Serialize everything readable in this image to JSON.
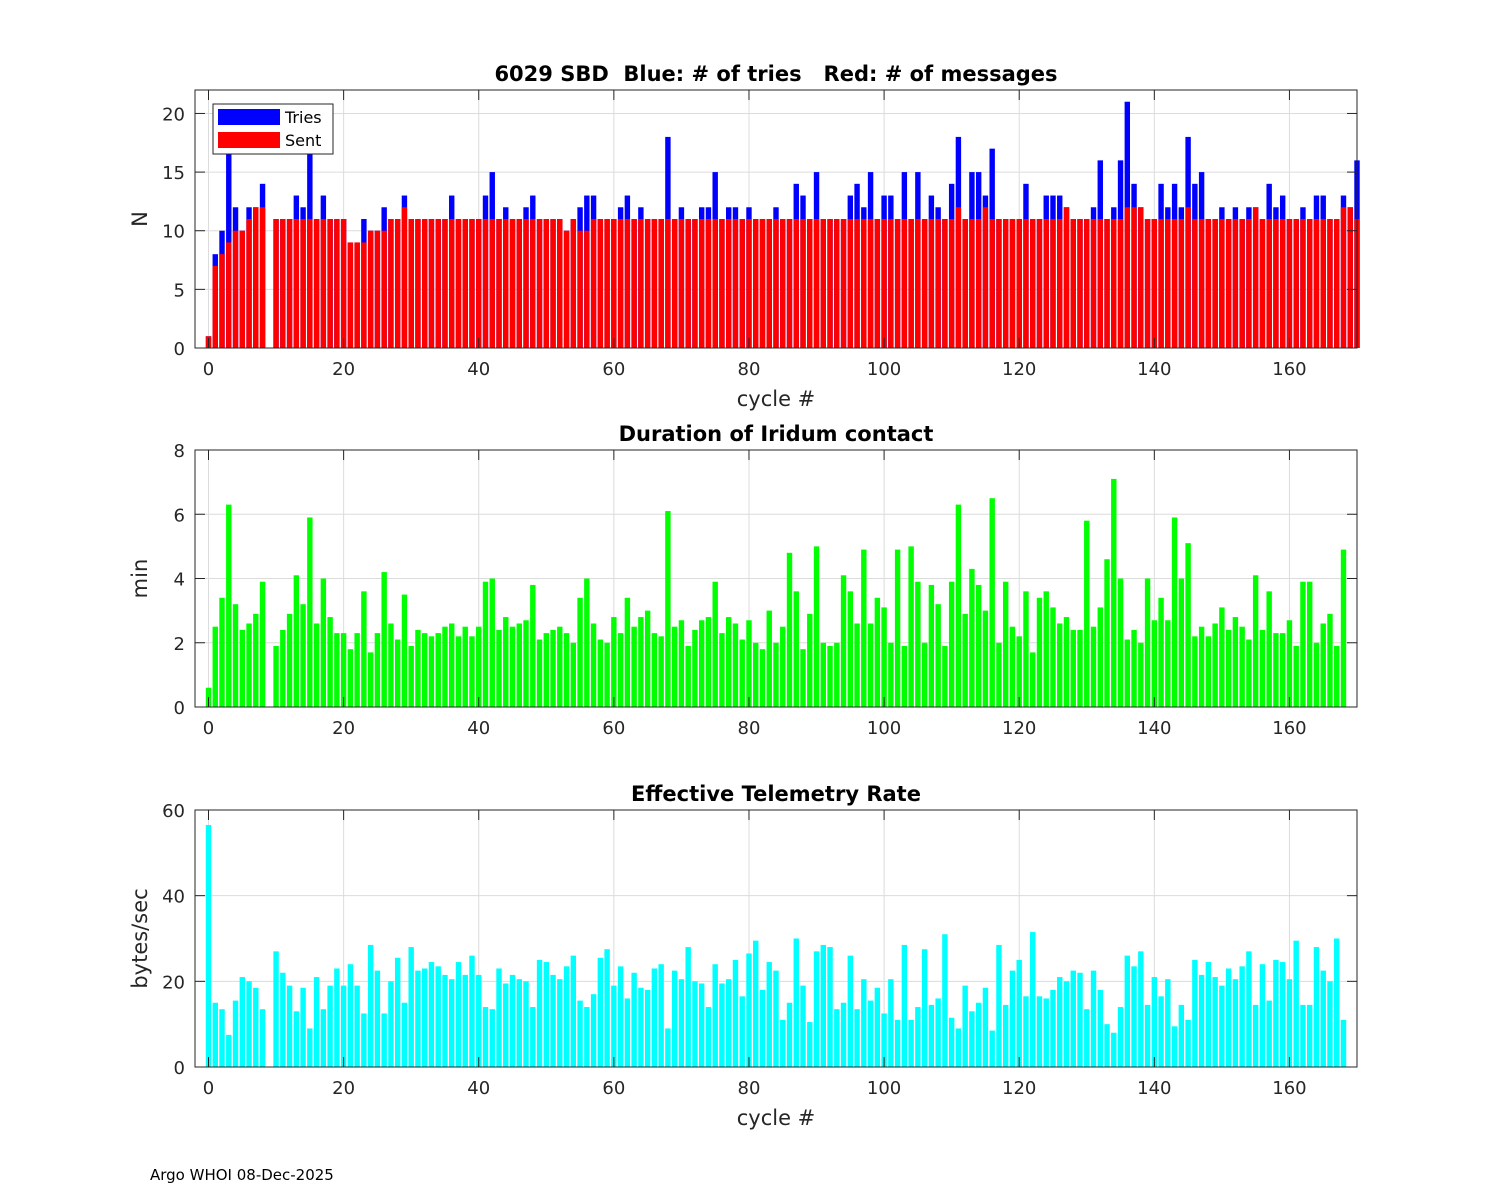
{
  "footer_text": "Argo WHOI 08-Dec-2025",
  "colors": {
    "tries": "#0000ff",
    "sent": "#ff0000",
    "duration": "#00ff00",
    "rate": "#00ffff"
  },
  "chart_data": [
    {
      "type": "bar",
      "title": "6029 SBD  Blue: # of tries   Red: # of messages",
      "xlabel": "cycle #",
      "ylabel": "N",
      "xlim": [
        -2,
        170
      ],
      "ylim": [
        0,
        22
      ],
      "xticks": [
        0,
        20,
        40,
        60,
        80,
        100,
        120,
        140,
        160
      ],
      "yticks": [
        0,
        5,
        10,
        15,
        20
      ],
      "grid": true,
      "legend": {
        "position": "top-left",
        "entries": [
          "Tries",
          "Sent"
        ]
      },
      "x_start": 0,
      "series": [
        {
          "name": "Tries",
          "color": "#0000ff",
          "values": [
            1,
            8,
            10,
            17,
            12,
            10,
            12,
            12,
            14,
            null,
            11,
            11,
            11,
            13,
            12,
            17,
            11,
            13,
            11,
            11,
            11,
            9,
            9,
            11,
            10,
            10,
            12,
            11,
            11,
            13,
            11,
            11,
            11,
            11,
            11,
            11,
            13,
            11,
            11,
            11,
            11,
            13,
            15,
            11,
            12,
            11,
            11,
            12,
            13,
            11,
            11,
            11,
            11,
            10,
            11,
            12,
            13,
            13,
            11,
            11,
            11,
            12,
            13,
            11,
            12,
            11,
            11,
            11,
            18,
            11,
            12,
            11,
            11,
            12,
            12,
            15,
            11,
            12,
            12,
            11,
            12,
            11,
            11,
            11,
            12,
            11,
            11,
            14,
            13,
            11,
            15,
            11,
            11,
            11,
            11,
            13,
            14,
            12,
            15,
            11,
            13,
            13,
            11,
            15,
            11,
            15,
            11,
            13,
            12,
            11,
            14,
            18,
            11,
            15,
            15,
            13,
            17,
            11,
            11,
            11,
            11,
            14,
            11,
            11,
            13,
            13,
            13,
            12,
            11,
            11,
            11,
            12,
            16,
            11,
            12,
            16,
            21,
            14,
            12,
            11,
            11,
            14,
            12,
            14,
            12,
            18,
            14,
            15,
            11,
            11,
            12,
            11,
            12,
            11,
            12,
            12,
            11,
            14,
            12,
            13,
            11,
            11,
            12,
            11,
            13,
            13,
            11,
            11,
            13,
            12,
            16
          ]
        },
        {
          "name": "Sent",
          "color": "#ff0000",
          "values": [
            1,
            7,
            8,
            9,
            10,
            10,
            11,
            12,
            12,
            null,
            11,
            11,
            11,
            11,
            11,
            11,
            11,
            11,
            11,
            11,
            11,
            9,
            9,
            9,
            10,
            10,
            10,
            11,
            11,
            12,
            11,
            11,
            11,
            11,
            11,
            11,
            11,
            11,
            11,
            11,
            11,
            11,
            11,
            11,
            11,
            11,
            11,
            11,
            11,
            11,
            11,
            11,
            11,
            10,
            11,
            10,
            10,
            11,
            11,
            11,
            11,
            11,
            11,
            11,
            11,
            11,
            11,
            11,
            11,
            11,
            11,
            11,
            11,
            11,
            11,
            11,
            11,
            11,
            11,
            11,
            11,
            11,
            11,
            11,
            11,
            11,
            11,
            11,
            11,
            11,
            11,
            11,
            11,
            11,
            11,
            11,
            11,
            11,
            11,
            11,
            11,
            11,
            11,
            11,
            11,
            11,
            11,
            11,
            11,
            11,
            11,
            12,
            11,
            11,
            11,
            12,
            11,
            11,
            11,
            11,
            11,
            11,
            11,
            11,
            11,
            11,
            11,
            12,
            11,
            11,
            11,
            11,
            11,
            11,
            11,
            11,
            12,
            12,
            12,
            11,
            11,
            11,
            11,
            11,
            11,
            12,
            11,
            11,
            11,
            11,
            11,
            11,
            11,
            11,
            11,
            12,
            11,
            11,
            11,
            11,
            11,
            11,
            11,
            11,
            11,
            11,
            11,
            11,
            12,
            12,
            11
          ]
        }
      ]
    },
    {
      "type": "bar",
      "title": "Duration of Iridum contact",
      "xlabel": "",
      "ylabel": "min",
      "xlim": [
        -2,
        170
      ],
      "ylim": [
        0,
        8
      ],
      "xticks": [
        0,
        20,
        40,
        60,
        80,
        100,
        120,
        140,
        160
      ],
      "yticks": [
        0,
        2,
        4,
        6,
        8
      ],
      "grid": true,
      "x_start": 0,
      "series": [
        {
          "name": "",
          "color": "#00ff00",
          "values": [
            0.6,
            2.5,
            3.4,
            6.3,
            3.2,
            2.4,
            2.6,
            2.9,
            3.9,
            null,
            1.9,
            2.4,
            2.9,
            4.1,
            3.2,
            5.9,
            2.6,
            4.0,
            2.8,
            2.3,
            2.3,
            1.8,
            2.3,
            3.6,
            1.7,
            2.3,
            4.2,
            2.6,
            2.1,
            3.5,
            1.9,
            2.4,
            2.3,
            2.2,
            2.3,
            2.5,
            2.6,
            2.2,
            2.5,
            2.2,
            2.5,
            3.9,
            4.0,
            2.4,
            2.8,
            2.5,
            2.6,
            2.7,
            3.8,
            2.1,
            2.3,
            2.4,
            2.5,
            2.3,
            2.0,
            3.4,
            4.0,
            2.6,
            2.1,
            2.0,
            2.8,
            2.3,
            3.4,
            2.5,
            2.8,
            3.0,
            2.3,
            2.2,
            6.1,
            2.5,
            2.7,
            1.9,
            2.4,
            2.7,
            2.8,
            3.9,
            2.3,
            2.8,
            2.6,
            2.1,
            2.7,
            2.0,
            1.8,
            3.0,
            2.0,
            2.5,
            4.8,
            3.6,
            1.8,
            2.9,
            5.0,
            2.0,
            1.9,
            2.0,
            4.1,
            3.6,
            2.6,
            4.9,
            2.6,
            3.4,
            3.1,
            2.0,
            4.9,
            1.9,
            5.0,
            3.9,
            2.0,
            3.8,
            3.2,
            1.9,
            3.9,
            6.3,
            2.9,
            4.3,
            3.8,
            3.0,
            6.5,
            2.0,
            3.9,
            2.5,
            2.2,
            3.6,
            1.7,
            3.4,
            3.6,
            3.1,
            2.6,
            2.8,
            2.4,
            2.4,
            5.8,
            2.5,
            3.1,
            4.6,
            7.1,
            4.0,
            2.1,
            2.4,
            2.0,
            4.0,
            2.7,
            3.4,
            2.7,
            5.9,
            4.0,
            5.1,
            2.2,
            2.5,
            2.2,
            2.6,
            3.1,
            2.4,
            2.8,
            2.5,
            2.1,
            4.1,
            2.4,
            3.6,
            2.3,
            2.3,
            2.7,
            1.9,
            3.9,
            3.9,
            2.0,
            2.6,
            2.9,
            1.9,
            4.9
          ]
        }
      ]
    },
    {
      "type": "bar",
      "title": "Effective Telemetry Rate",
      "xlabel": "cycle #",
      "ylabel": "bytes/sec",
      "xlim": [
        -2,
        170
      ],
      "ylim": [
        0,
        60
      ],
      "xticks": [
        0,
        20,
        40,
        60,
        80,
        100,
        120,
        140,
        160
      ],
      "yticks": [
        0,
        20,
        40,
        60
      ],
      "grid": true,
      "x_start": 0,
      "series": [
        {
          "name": "",
          "color": "#00ffff",
          "values": [
            56.5,
            15,
            13.5,
            7.5,
            15.5,
            21,
            20,
            18.5,
            13.5,
            null,
            27,
            22,
            19,
            13,
            18.5,
            9,
            21,
            13.5,
            19,
            23,
            19,
            24,
            19,
            12.5,
            28.5,
            22.5,
            12.5,
            20,
            25.5,
            15,
            28,
            22.5,
            23,
            24.5,
            23.5,
            21.5,
            20.5,
            24.5,
            21.5,
            26,
            21.5,
            14,
            13.5,
            23,
            19.5,
            21.5,
            20.5,
            20,
            14,
            25,
            24.5,
            21.5,
            20.5,
            23.5,
            26,
            15.5,
            14,
            17,
            25.5,
            27.5,
            19,
            23.5,
            16,
            22,
            18.5,
            18,
            23,
            24,
            9,
            22.5,
            20.5,
            28,
            20,
            19.5,
            14,
            24,
            19.5,
            20.5,
            25,
            16.5,
            26.5,
            29.5,
            18,
            24.5,
            22.5,
            11,
            15,
            30,
            19,
            10.5,
            27,
            28.5,
            28,
            13.5,
            15,
            26,
            13.5,
            20.5,
            15.5,
            18.5,
            12.5,
            20.5,
            11,
            28.5,
            11,
            14,
            27.5,
            14.5,
            16,
            31,
            11.5,
            9,
            19,
            13,
            15,
            18.5,
            8.5,
            28.5,
            14.5,
            22.5,
            25,
            16.5,
            31.5,
            16.5,
            16,
            18,
            21,
            20,
            22.5,
            22,
            13.5,
            22.5,
            18,
            10,
            8,
            14,
            26,
            23.5,
            27,
            14.5,
            21,
            16.5,
            20.5,
            9.5,
            14.5,
            11,
            25,
            21.5,
            24.5,
            21,
            19,
            23,
            20.5,
            23.5,
            27,
            14.5,
            24,
            15.5,
            25,
            24.5,
            20.5,
            29.5,
            14.5,
            14.5,
            28,
            22.5,
            20,
            30,
            11
          ]
        }
      ]
    }
  ]
}
